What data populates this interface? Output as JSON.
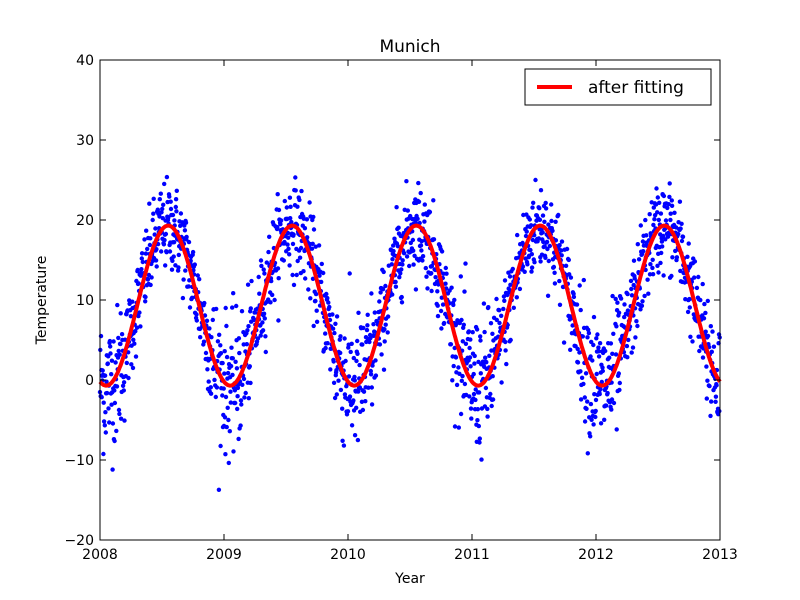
{
  "chart_data": {
    "type": "scatter",
    "title": "Munich",
    "xlabel": "Year",
    "ylabel": "Temperature",
    "xlim": [
      2008,
      2013
    ],
    "ylim": [
      -20,
      40
    ],
    "xticks": [
      2008,
      2009,
      2010,
      2011,
      2012,
      2013
    ],
    "yticks": [
      -20,
      -10,
      0,
      10,
      20,
      30,
      40
    ],
    "xtick_labels": [
      "2008",
      "2009",
      "2010",
      "2011",
      "2012",
      "2013"
    ],
    "ytick_labels": [
      "−20",
      "−10",
      "0",
      "10",
      "20",
      "30",
      "40"
    ],
    "grid": false,
    "legend_position": "top-right",
    "series": [
      {
        "kind": "scatter",
        "color": "#0000ff",
        "model": {
          "mean": 9.3,
          "amplitude": 10.0,
          "peak_year_fraction": 0.55,
          "noise_sd": 2.8
        },
        "n_points_per_year": 365
      },
      {
        "kind": "line",
        "name": "after fitting",
        "color": "#ff0000",
        "model": {
          "mean": 9.3,
          "amplitude": 10.0,
          "peak_year_fraction": 0.55
        }
      }
    ]
  }
}
